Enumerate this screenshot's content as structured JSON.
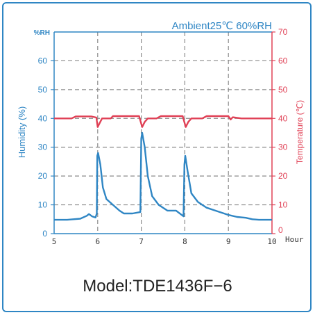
{
  "chart_data": {
    "type": "line",
    "title": "Ambient25℃ 60%RH",
    "model": "Model:TDE1436F−6",
    "x": {
      "label": "Hour",
      "min": 5,
      "max": 10,
      "ticks": [
        5,
        6,
        7,
        8,
        9,
        10
      ],
      "tick_labels": [
        "5",
        "6",
        "7",
        "8",
        "9",
        "10"
      ]
    },
    "y_left": {
      "label": "Humidity (%)",
      "unit_label": "%RH",
      "min": 0,
      "max": 70,
      "ticks": [
        0,
        10,
        20,
        30,
        40,
        50,
        60
      ],
      "tick_labels": [
        "0",
        "10",
        "20",
        "30",
        "40",
        "50",
        "60"
      ],
      "unit_tick_value": 70,
      "color": "#2f86c4"
    },
    "y_right": {
      "label": "Temperature (℃)",
      "min": 0,
      "max": 70,
      "ticks": [
        0,
        10,
        20,
        30,
        40,
        50,
        60,
        70
      ],
      "tick_labels": [
        "0",
        "10",
        "20",
        "30",
        "40",
        "50",
        "60",
        "70"
      ],
      "color": "#e04055"
    },
    "grid": true,
    "series": [
      {
        "axis": "left",
        "color": "#2f86c4",
        "points": [
          [
            5.0,
            4.8
          ],
          [
            5.3,
            4.8
          ],
          [
            5.6,
            5.2
          ],
          [
            5.75,
            6.2
          ],
          [
            5.8,
            6.8
          ],
          [
            5.87,
            6.0
          ],
          [
            5.95,
            5.6
          ],
          [
            5.98,
            7.0
          ],
          [
            5.99,
            27.0
          ],
          [
            6.01,
            28.0
          ],
          [
            6.06,
            24.0
          ],
          [
            6.12,
            16.0
          ],
          [
            6.2,
            12.0
          ],
          [
            6.35,
            10.0
          ],
          [
            6.5,
            8.0
          ],
          [
            6.6,
            7.0
          ],
          [
            6.8,
            7.0
          ],
          [
            6.98,
            7.5
          ],
          [
            7.0,
            33.0
          ],
          [
            7.02,
            35.0
          ],
          [
            7.08,
            30.0
          ],
          [
            7.15,
            20.0
          ],
          [
            7.25,
            13.0
          ],
          [
            7.4,
            10.0
          ],
          [
            7.6,
            8.0
          ],
          [
            7.8,
            8.0
          ],
          [
            7.97,
            6.0
          ],
          [
            7.99,
            24.0
          ],
          [
            8.01,
            27.0
          ],
          [
            8.06,
            22.0
          ],
          [
            8.15,
            14.0
          ],
          [
            8.3,
            11.0
          ],
          [
            8.5,
            9.0
          ],
          [
            8.7,
            8.0
          ],
          [
            8.9,
            7.0
          ],
          [
            9.0,
            6.5
          ],
          [
            9.2,
            5.8
          ],
          [
            9.4,
            5.5
          ],
          [
            9.55,
            5.0
          ],
          [
            9.7,
            4.8
          ],
          [
            10.0,
            4.8
          ]
        ]
      },
      {
        "axis": "right",
        "color": "#e04055",
        "points": [
          [
            5.0,
            40.0
          ],
          [
            5.4,
            40.0
          ],
          [
            5.5,
            40.7
          ],
          [
            5.85,
            40.7
          ],
          [
            5.97,
            40.3
          ],
          [
            6.0,
            37.0
          ],
          [
            6.05,
            38.5
          ],
          [
            6.1,
            40.0
          ],
          [
            6.3,
            40.0
          ],
          [
            6.35,
            40.8
          ],
          [
            6.95,
            40.8
          ],
          [
            7.02,
            37.0
          ],
          [
            7.08,
            38.8
          ],
          [
            7.15,
            40.0
          ],
          [
            7.35,
            40.0
          ],
          [
            7.45,
            40.8
          ],
          [
            7.95,
            40.8
          ],
          [
            8.02,
            37.0
          ],
          [
            8.08,
            38.8
          ],
          [
            8.15,
            40.0
          ],
          [
            8.4,
            40.0
          ],
          [
            8.5,
            40.8
          ],
          [
            9.0,
            40.8
          ],
          [
            9.05,
            39.6
          ],
          [
            9.1,
            40.4
          ],
          [
            9.3,
            40.0
          ],
          [
            10.0,
            40.0
          ]
        ]
      }
    ]
  }
}
